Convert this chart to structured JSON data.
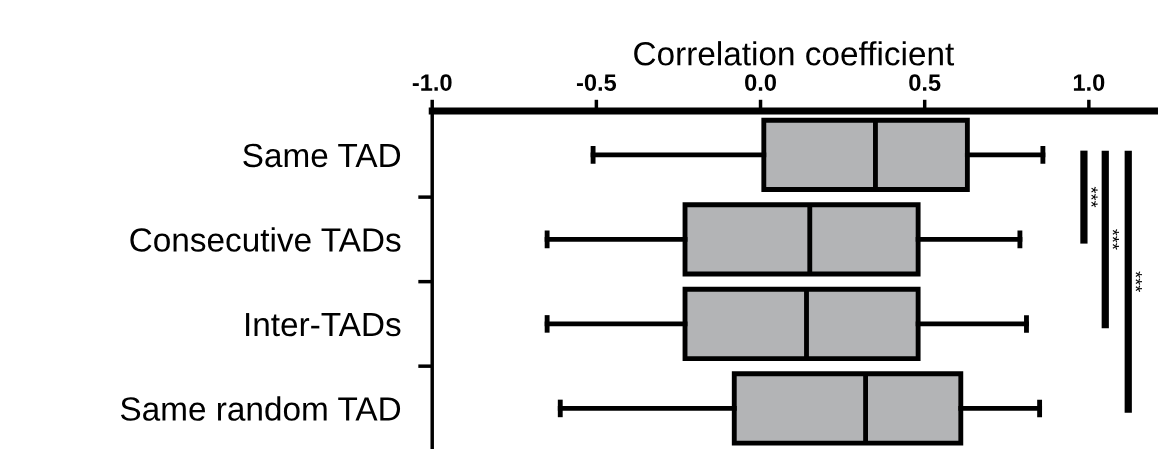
{
  "chart_data": {
    "type": "box",
    "orientation": "horizontal",
    "xlabel": "Correlation coefficient",
    "categories": [
      "Same TAD",
      "Consecutive TADs",
      "Inter-TADs",
      "Same random TAD"
    ],
    "color": "#b3b4b6",
    "boxes": [
      {
        "low": -0.51,
        "q1": 0.01,
        "median": 0.35,
        "q3": 0.63,
        "high": 0.86
      },
      {
        "low": -0.65,
        "q1": -0.23,
        "median": 0.15,
        "q3": 0.48,
        "high": 0.79
      },
      {
        "low": -0.65,
        "q1": -0.23,
        "median": 0.14,
        "q3": 0.48,
        "high": 0.81
      },
      {
        "low": -0.61,
        "q1": -0.08,
        "median": 0.32,
        "q3": 0.61,
        "high": 0.85
      }
    ],
    "xlim": [
      -1.0,
      1.2
    ],
    "xticks": [
      {
        "value": -1.0,
        "label": "-1.0"
      },
      {
        "value": -0.5,
        "label": "-0.5"
      },
      {
        "value": 0.0,
        "label": "0.0"
      },
      {
        "value": 0.5,
        "label": "0.5"
      },
      {
        "value": 1.0,
        "label": "1.0"
      }
    ],
    "grid": false,
    "annotations": [
      "***",
      "***",
      "***"
    ]
  }
}
